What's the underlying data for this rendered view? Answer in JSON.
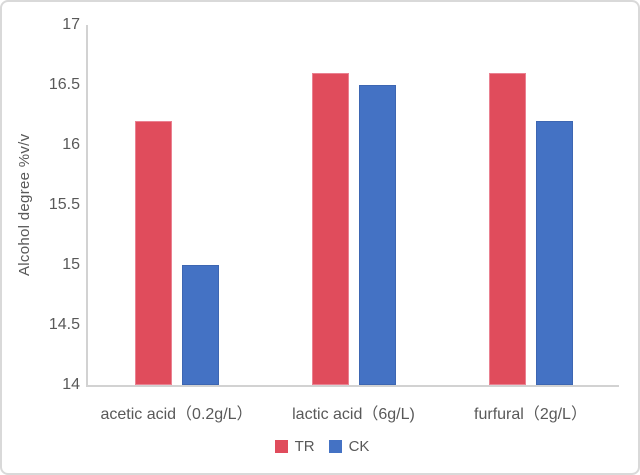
{
  "chart_data": {
    "type": "bar",
    "title": "",
    "xlabel": "",
    "ylabel": "Alcohol degree %v/v",
    "categories": [
      "acetic acid（0.2g/L）",
      "lactic acid（6g/L)",
      "furfural（2g/L）"
    ],
    "series": [
      {
        "name": "TR",
        "color": "#E04C5C",
        "border_color": "#EA8191",
        "values": [
          16.2,
          16.6,
          16.6
        ]
      },
      {
        "name": "CK",
        "color": "#4472C4",
        "border_color": "#3D66B2",
        "values": [
          15.0,
          16.5,
          16.2
        ]
      }
    ],
    "ylim": [
      14,
      17
    ],
    "yticks": [
      14,
      14.5,
      15,
      15.5,
      16,
      16.5,
      17
    ],
    "ytick_labels": [
      "14",
      "14.5",
      "15",
      "15.5",
      "16",
      "16.5",
      "17"
    ],
    "grid": false,
    "legend_position": "bottom",
    "legend": [
      "TR",
      "CK"
    ],
    "colors": {
      "axis_line": "#D2D2D2",
      "text": "#595959",
      "frame_border": "#D9D9D9",
      "background": "#FFFFFF"
    }
  }
}
